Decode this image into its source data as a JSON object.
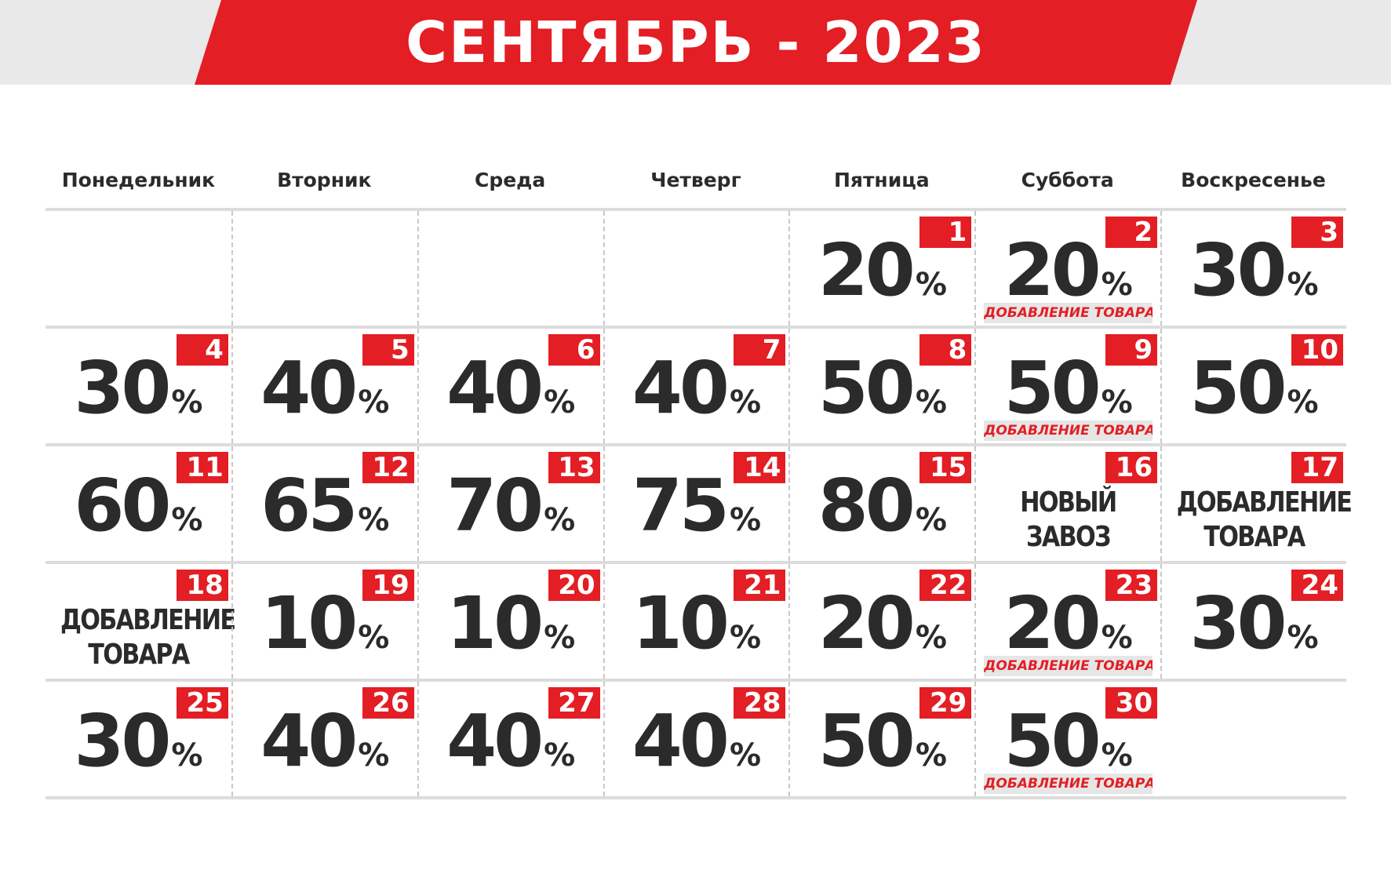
{
  "title": "СЕНТЯБРЬ - 2023",
  "colors": {
    "accent": "#e31e24",
    "text": "#2b2b2b",
    "band": "#e9e9e9",
    "strip": "#e6e6e6"
  },
  "weekdays": [
    "Понедельник",
    "Вторник",
    "Среда",
    "Четверг",
    "Пятница",
    "Суббота",
    "Воскресенье"
  ],
  "days": [
    {
      "day": "1",
      "discount": "20",
      "pct": "%",
      "note": "",
      "event": ""
    },
    {
      "day": "2",
      "discount": "20",
      "pct": "%",
      "note": "ДОБАВЛЕНИЕ ТОВАРА",
      "event": ""
    },
    {
      "day": "3",
      "discount": "30",
      "pct": "%",
      "note": "",
      "event": ""
    },
    {
      "day": "4",
      "discount": "30",
      "pct": "%",
      "note": "",
      "event": ""
    },
    {
      "day": "5",
      "discount": "40",
      "pct": "%",
      "note": "",
      "event": ""
    },
    {
      "day": "6",
      "discount": "40",
      "pct": "%",
      "note": "",
      "event": ""
    },
    {
      "day": "7",
      "discount": "40",
      "pct": "%",
      "note": "",
      "event": ""
    },
    {
      "day": "8",
      "discount": "50",
      "pct": "%",
      "note": "",
      "event": ""
    },
    {
      "day": "9",
      "discount": "50",
      "pct": "%",
      "note": "ДОБАВЛЕНИЕ ТОВАРА",
      "event": ""
    },
    {
      "day": "10",
      "discount": "50",
      "pct": "%",
      "note": "",
      "event": ""
    },
    {
      "day": "11",
      "discount": "60",
      "pct": "%",
      "note": "",
      "event": ""
    },
    {
      "day": "12",
      "discount": "65",
      "pct": "%",
      "note": "",
      "event": ""
    },
    {
      "day": "13",
      "discount": "70",
      "pct": "%",
      "note": "",
      "event": ""
    },
    {
      "day": "14",
      "discount": "75",
      "pct": "%",
      "note": "",
      "event": ""
    },
    {
      "day": "15",
      "discount": "80",
      "pct": "%",
      "note": "",
      "event": ""
    },
    {
      "day": "16",
      "discount": "",
      "pct": "",
      "note": "",
      "event": "НОВЫЙ ЗАВОЗ"
    },
    {
      "day": "17",
      "discount": "",
      "pct": "",
      "note": "",
      "event": "ДОБАВЛЕНИЕ ТОВАРА"
    },
    {
      "day": "18",
      "discount": "",
      "pct": "",
      "note": "",
      "event": "ДОБАВЛЕНИЕ ТОВАРА"
    },
    {
      "day": "19",
      "discount": "10",
      "pct": "%",
      "note": "",
      "event": ""
    },
    {
      "day": "20",
      "discount": "10",
      "pct": "%",
      "note": "",
      "event": ""
    },
    {
      "day": "21",
      "discount": "10",
      "pct": "%",
      "note": "",
      "event": ""
    },
    {
      "day": "22",
      "discount": "20",
      "pct": "%",
      "note": "",
      "event": ""
    },
    {
      "day": "23",
      "discount": "20",
      "pct": "%",
      "note": "ДОБАВЛЕНИЕ ТОВАРА",
      "event": ""
    },
    {
      "day": "24",
      "discount": "30",
      "pct": "%",
      "note": "",
      "event": ""
    },
    {
      "day": "25",
      "discount": "30",
      "pct": "%",
      "note": "",
      "event": ""
    },
    {
      "day": "26",
      "discount": "40",
      "pct": "%",
      "note": "",
      "event": ""
    },
    {
      "day": "27",
      "discount": "40",
      "pct": "%",
      "note": "",
      "event": ""
    },
    {
      "day": "28",
      "discount": "40",
      "pct": "%",
      "note": "",
      "event": ""
    },
    {
      "day": "29",
      "discount": "50",
      "pct": "%",
      "note": "",
      "event": ""
    },
    {
      "day": "30",
      "discount": "50",
      "pct": "%",
      "note": "ДОБАВЛЕНИЕ ТОВАРА",
      "event": ""
    }
  ]
}
